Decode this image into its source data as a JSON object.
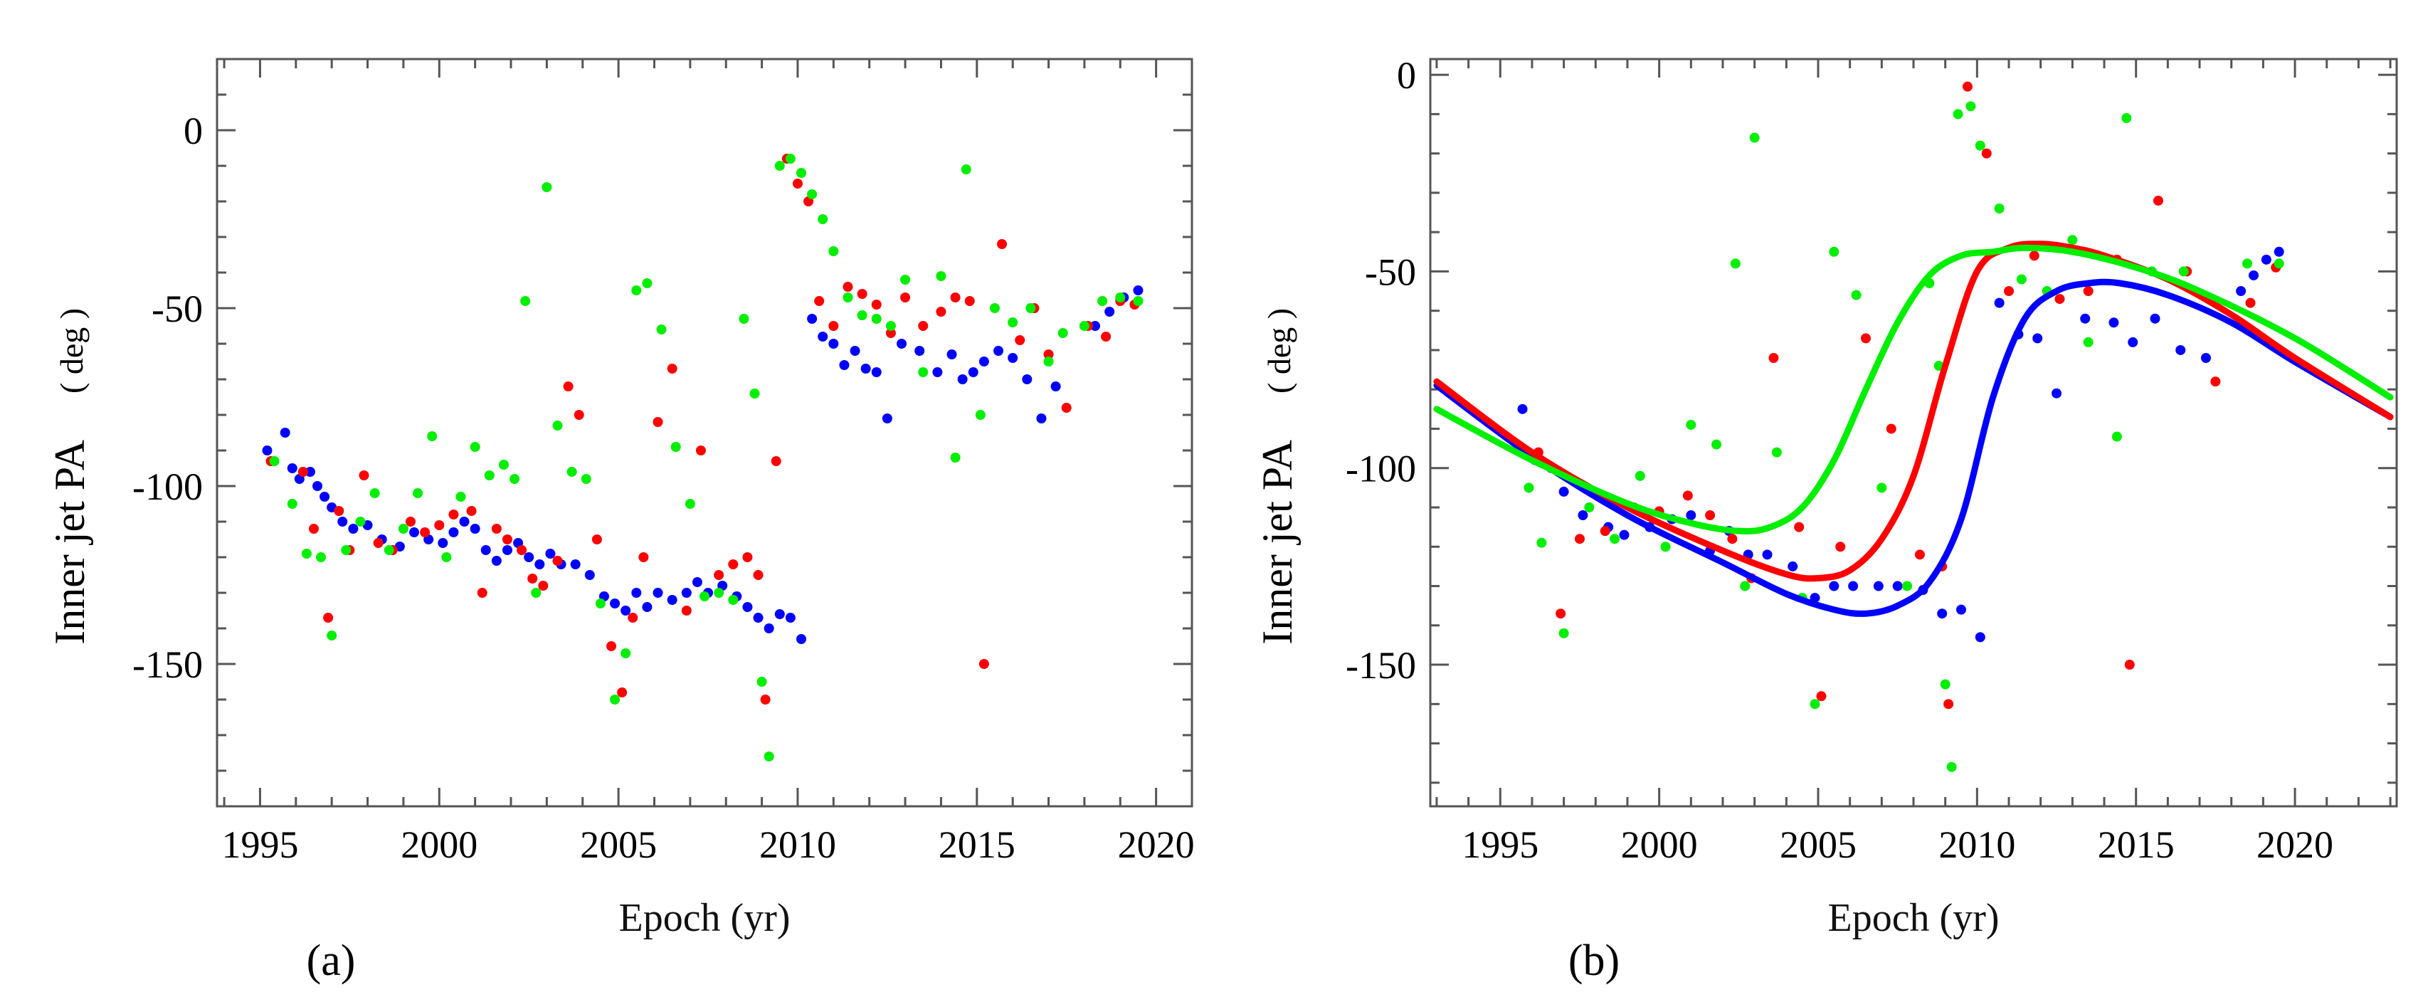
{
  "chart_data": [
    {
      "panel": "a",
      "type": "scatter",
      "panel_label": "(a)",
      "xlabel": "Epoch (yr)",
      "ylabel": "Inner jet PA",
      "ylabel_unit": "( deg )",
      "xlim": [
        1993.8,
        2021.0
      ],
      "ylim": [
        -190,
        20
      ],
      "xticks": [
        1995,
        2000,
        2005,
        2010,
        2015,
        2020
      ],
      "yticks": [
        0,
        -50,
        -100,
        -150
      ],
      "series": [
        {
          "name": "blue",
          "color": "#0000ff",
          "x": [
            1995.2,
            1995.7,
            1995.9,
            1996.1,
            1996.4,
            1996.6,
            1996.8,
            1997.0,
            1997.3,
            1997.6,
            1998.0,
            1998.4,
            1998.9,
            1999.3,
            1999.7,
            2000.1,
            2000.4,
            2000.7,
            2001.0,
            2001.3,
            2001.6,
            2001.9,
            2002.2,
            2002.5,
            2002.8,
            2003.1,
            2003.4,
            2003.8,
            2004.2,
            2004.6,
            2004.9,
            2005.2,
            2005.5,
            2005.8,
            2006.1,
            2006.5,
            2006.9,
            2007.2,
            2007.5,
            2007.9,
            2008.3,
            2008.6,
            2008.9,
            2009.2,
            2009.5,
            2009.8,
            2010.1,
            2010.4,
            2010.7,
            2011.0,
            2011.3,
            2011.6,
            2011.9,
            2012.2,
            2012.5,
            2012.9,
            2013.4,
            2013.9,
            2014.3,
            2014.6,
            2014.9,
            2015.2,
            2015.6,
            2016.0,
            2016.4,
            2016.8,
            2017.2,
            2018.3,
            2018.7,
            2019.1,
            2019.5
          ],
          "y": [
            -90,
            -85,
            -95,
            -98,
            -96,
            -100,
            -103,
            -106,
            -110,
            -112,
            -111,
            -115,
            -117,
            -113,
            -115,
            -116,
            -113,
            -110,
            -112,
            -118,
            -121,
            -118,
            -116,
            -120,
            -122,
            -119,
            -122,
            -122,
            -125,
            -131,
            -133,
            -135,
            -130,
            -134,
            -130,
            -132,
            -130,
            -127,
            -130,
            -128,
            -131,
            -134,
            -137,
            -140,
            -136,
            -137,
            -143,
            -53,
            -58,
            -60,
            -66,
            -62,
            -67,
            -68,
            -81,
            -60,
            -62,
            -68,
            -63,
            -70,
            -68,
            -65,
            -62,
            -64,
            -70,
            -81,
            -72,
            -55,
            -51,
            -47,
            -45
          ]
        },
        {
          "name": "red",
          "color": "#ff0000",
          "x": [
            1995.3,
            1996.2,
            1996.5,
            1996.9,
            1997.2,
            1997.5,
            1997.9,
            1998.3,
            1998.7,
            1999.2,
            1999.6,
            2000.0,
            2000.4,
            2000.9,
            2001.2,
            2001.6,
            2001.9,
            2002.3,
            2002.6,
            2002.9,
            2003.3,
            2003.6,
            2003.9,
            2004.4,
            2004.8,
            2005.1,
            2005.4,
            2005.7,
            2006.1,
            2006.5,
            2006.9,
            2007.3,
            2007.8,
            2008.2,
            2008.6,
            2008.9,
            2009.1,
            2009.4,
            2009.7,
            2010.0,
            2010.3,
            2010.6,
            2011.0,
            2011.4,
            2011.8,
            2012.2,
            2012.6,
            2013.0,
            2013.5,
            2014.0,
            2014.4,
            2014.8,
            2015.2,
            2015.7,
            2016.2,
            2016.6,
            2017.0,
            2017.5,
            2018.1,
            2018.6,
            2019.0,
            2019.4
          ],
          "y": [
            -93,
            -96,
            -112,
            -137,
            -107,
            -118,
            -97,
            -116,
            -118,
            -110,
            -113,
            -111,
            -108,
            -107,
            -130,
            -112,
            -115,
            -118,
            -126,
            -128,
            -121,
            -72,
            -80,
            -115,
            -145,
            -158,
            -137,
            -120,
            -82,
            -67,
            -135,
            -90,
            -125,
            -122,
            -120,
            -125,
            -160,
            -93,
            -8,
            -15,
            -20,
            -48,
            -55,
            -44,
            -46,
            -49,
            -57,
            -47,
            -55,
            -51,
            -47,
            -48,
            -150,
            -32,
            -59,
            -50,
            -63,
            -78,
            -55,
            -58,
            -48,
            -49
          ]
        },
        {
          "name": "green",
          "color": "#00ee00",
          "x": [
            1995.4,
            1995.9,
            1996.3,
            1996.7,
            1997.0,
            1997.4,
            1997.8,
            1998.2,
            1998.6,
            1999.0,
            1999.4,
            1999.8,
            2000.2,
            2000.6,
            2001.0,
            2001.4,
            2001.8,
            2002.1,
            2002.4,
            2002.7,
            2003.0,
            2003.3,
            2003.7,
            2004.1,
            2004.5,
            2004.9,
            2005.2,
            2005.5,
            2005.8,
            2006.2,
            2006.6,
            2007.0,
            2007.4,
            2007.8,
            2008.2,
            2008.5,
            2008.8,
            2009.0,
            2009.2,
            2009.5,
            2009.8,
            2010.1,
            2010.4,
            2010.7,
            2011.0,
            2011.4,
            2011.8,
            2012.2,
            2012.6,
            2013.0,
            2013.5,
            2014.0,
            2014.4,
            2014.7,
            2015.1,
            2015.5,
            2016.0,
            2016.5,
            2017.0,
            2017.4,
            2018.0,
            2018.5,
            2019.0,
            2019.5
          ],
          "y": [
            -93,
            -105,
            -119,
            -120,
            -142,
            -118,
            -110,
            -102,
            -118,
            -112,
            -102,
            -86,
            -120,
            -103,
            -89,
            -97,
            -94,
            -98,
            -48,
            -130,
            -16,
            -83,
            -96,
            -98,
            -133,
            -160,
            -147,
            -45,
            -43,
            -56,
            -89,
            -105,
            -131,
            -130,
            -132,
            -53,
            -74,
            -155,
            -176,
            -10,
            -8,
            -12,
            -18,
            -25,
            -34,
            -47,
            -52,
            -53,
            -55,
            -42,
            -68,
            -41,
            -92,
            -11,
            -80,
            -50,
            -54,
            -50,
            -65,
            -57,
            -55,
            -48,
            -47,
            -48
          ]
        }
      ]
    },
    {
      "panel": "b",
      "type": "scatter",
      "panel_label": "(b)",
      "xlabel": "Epoch (yr)",
      "ylabel": "Inner jet PA",
      "ylabel_unit": "( deg )",
      "xlim": [
        1992.8,
        2023.2
      ],
      "ylim": [
        -186,
        4
      ],
      "xticks": [
        1995,
        2000,
        2005,
        2010,
        2015,
        2020
      ],
      "yticks": [
        0,
        -50,
        -100,
        -150
      ],
      "series": [
        {
          "name": "blue",
          "color": "#0000ff",
          "x": [
            1995.7,
            1996.1,
            1996.6,
            1997.0,
            1997.6,
            1998.4,
            1998.9,
            1999.7,
            2000.4,
            2001.0,
            2001.6,
            2002.2,
            2002.8,
            2003.4,
            2004.2,
            2004.9,
            2005.5,
            2006.1,
            2006.9,
            2007.5,
            2008.3,
            2008.9,
            2009.5,
            2010.1,
            2010.7,
            2011.3,
            2011.9,
            2012.5,
            2013.4,
            2014.3,
            2014.9,
            2015.6,
            2016.4,
            2017.2,
            2018.3,
            2018.7,
            2019.1,
            2019.5
          ],
          "y": [
            -85,
            -98,
            -100,
            -106,
            -112,
            -115,
            -117,
            -115,
            -113,
            -112,
            -121,
            -116,
            -122,
            -122,
            -125,
            -133,
            -130,
            -130,
            -130,
            -130,
            -131,
            -137,
            -136,
            -143,
            -58,
            -66,
            -67,
            -81,
            -62,
            -63,
            -68,
            -62,
            -70,
            -72,
            -55,
            -51,
            -47,
            -45
          ]
        },
        {
          "name": "red",
          "color": "#ff0000",
          "x": [
            1996.2,
            1996.9,
            1997.5,
            1998.3,
            1999.2,
            2000.0,
            2000.9,
            2001.6,
            2002.3,
            2002.9,
            2003.6,
            2004.4,
            2005.1,
            2005.7,
            2006.5,
            2007.3,
            2008.2,
            2008.9,
            2009.1,
            2009.7,
            2010.3,
            2011.0,
            2011.8,
            2012.6,
            2013.5,
            2014.4,
            2014.8,
            2015.7,
            2016.6,
            2017.5,
            2018.6,
            2019.4
          ],
          "y": [
            -96,
            -137,
            -118,
            -116,
            -110,
            -111,
            -107,
            -112,
            -118,
            -128,
            -72,
            -115,
            -158,
            -120,
            -67,
            -90,
            -122,
            -125,
            -160,
            -3,
            -20,
            -55,
            -46,
            -57,
            -55,
            -47,
            -150,
            -32,
            -50,
            -78,
            -58,
            -49
          ]
        },
        {
          "name": "green",
          "color": "#00ee00",
          "x": [
            1995.9,
            1996.3,
            1997.0,
            1997.8,
            1998.6,
            1999.4,
            2000.2,
            2001.0,
            2001.8,
            2002.4,
            2002.7,
            2003.0,
            2003.7,
            2004.5,
            2004.9,
            2005.5,
            2006.2,
            2007.0,
            2007.8,
            2008.5,
            2008.8,
            2009.0,
            2009.2,
            2009.4,
            2009.8,
            2010.1,
            2010.7,
            2011.4,
            2012.2,
            2013.0,
            2013.5,
            2014.4,
            2014.7,
            2015.5,
            2016.5,
            2017.4,
            2018.5,
            2019.5
          ],
          "y": [
            -105,
            -119,
            -142,
            -110,
            -118,
            -102,
            -120,
            -89,
            -94,
            -48,
            -130,
            -16,
            -96,
            -133,
            -160,
            -45,
            -56,
            -105,
            -130,
            -53,
            -74,
            -155,
            -176,
            -10,
            -8,
            -18,
            -34,
            -52,
            -55,
            -42,
            -68,
            -92,
            -11,
            -50,
            -50,
            -57,
            -48,
            -48
          ]
        }
      ],
      "curves": [
        {
          "name": "blue fit",
          "color": "#0000ff",
          "x": [
            1993,
            1996,
            1999,
            2002,
            2004,
            2005.5,
            2006.5,
            2007.5,
            2008.5,
            2009.5,
            2010.5,
            2011.5,
            2012.5,
            2013.5,
            2014.5,
            2016,
            2018,
            2020,
            2023
          ],
          "y": [
            -79,
            -97,
            -112,
            -124,
            -132,
            -136,
            -137,
            -135,
            -129,
            -113,
            -82,
            -62,
            -55,
            -53,
            -53,
            -56,
            -63,
            -73,
            -87
          ]
        },
        {
          "name": "red fit",
          "color": "#ff0000",
          "x": [
            1993,
            1996,
            1999,
            2002,
            2004,
            2005,
            2006,
            2007,
            2008,
            2009,
            2010,
            2011,
            2012,
            2013,
            2014,
            2016,
            2018,
            2020,
            2023
          ],
          "y": [
            -78,
            -96,
            -110,
            -121,
            -127,
            -128,
            -126,
            -118,
            -102,
            -74,
            -50,
            -44,
            -43,
            -44,
            -46,
            -52,
            -61,
            -72,
            -87
          ]
        },
        {
          "name": "green fit",
          "color": "#00ee00",
          "x": [
            1993,
            1996,
            1999,
            2001,
            2002.5,
            2003.5,
            2004.5,
            2005.5,
            2006.5,
            2007.5,
            2008.5,
            2009.5,
            2010.5,
            2011.5,
            2013,
            2015,
            2017,
            2020,
            2023
          ],
          "y": [
            -85,
            -98,
            -109,
            -114,
            -116,
            -115,
            -110,
            -98,
            -80,
            -63,
            -51,
            -46,
            -45,
            -44,
            -45,
            -49,
            -55,
            -67,
            -82
          ]
        }
      ]
    }
  ]
}
